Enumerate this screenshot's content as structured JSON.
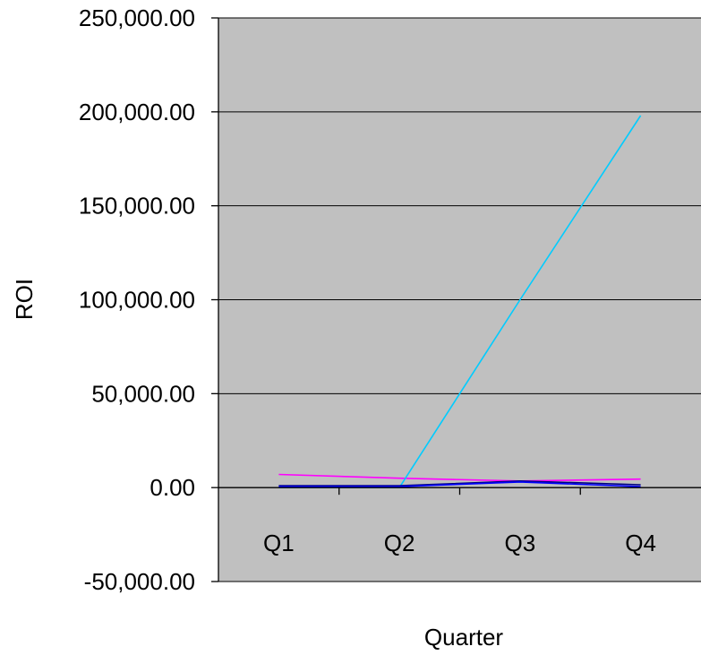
{
  "chart_data": {
    "type": "line",
    "title": "",
    "xlabel": "Quarter",
    "ylabel": "ROI",
    "categories": [
      "Q1",
      "Q2",
      "Q3",
      "Q4"
    ],
    "ylim": [
      -50000,
      250000
    ],
    "yticks": [
      -50000,
      0,
      50000,
      100000,
      150000,
      200000,
      250000
    ],
    "ytick_labels": [
      "-50,000.00",
      "0.00",
      "50,000.00",
      "100,000.00",
      "150,000.00",
      "200,000.00",
      "250,000.00"
    ],
    "grid": "horizontal",
    "legend": "none",
    "plot_background": "#c0c0c0",
    "series": [
      {
        "color": "#ff00ff",
        "values": [
          7000,
          5000,
          3500,
          4500
        ]
      },
      {
        "color": "#00ccff",
        "values": [
          0,
          0,
          100000,
          198000
        ]
      },
      {
        "color": "#000080",
        "values": [
          1000,
          1000,
          3500,
          1500
        ]
      },
      {
        "color": "#0000ff",
        "values": [
          500,
          500,
          3000,
          500
        ]
      }
    ]
  }
}
